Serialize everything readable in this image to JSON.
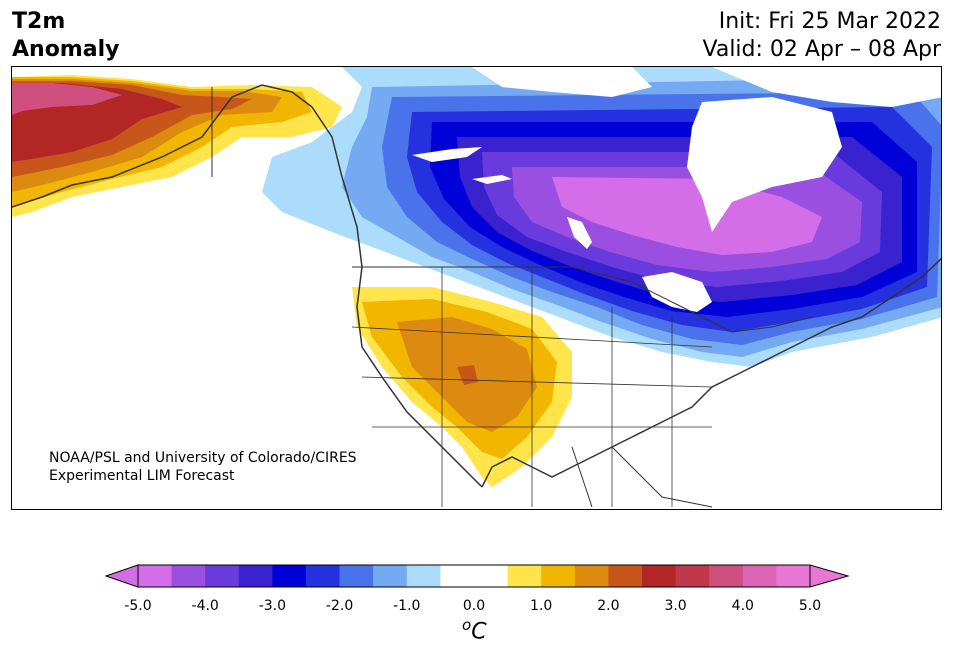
{
  "header": {
    "title_line1": "T2m",
    "title_line2": "Anomaly",
    "init": "Init: Fri 25 Mar 2022",
    "valid": "Valid: 02 Apr – 08 Apr"
  },
  "credit": {
    "line1": "NOAA/PSL and University of Colorado/CIRES",
    "line2": "Experimental LIM Forecast"
  },
  "colorbar": {
    "ticks": [
      "-5.0",
      "-4.0",
      "-3.0",
      "-2.0",
      "-1.0",
      "0.0",
      "1.0",
      "2.0",
      "3.0",
      "4.0",
      "5.0"
    ],
    "unit_base": "C",
    "unit_prefix": "o",
    "colors": [
      "#d46ee8",
      "#9b4fe0",
      "#6a3bdc",
      "#3a22cf",
      "#0000d8",
      "#2530de",
      "#4a72ea",
      "#75aaf2",
      "#acdcfb",
      "#ffffff",
      "#ffffff",
      "#ffe44a",
      "#f2b600",
      "#dd8a10",
      "#c8561a",
      "#b32626",
      "#c0384c",
      "#cf4f7e",
      "#db64b4",
      "#e877d4"
    ]
  },
  "map": {
    "region": "North America",
    "legend_note": "anomaly shading; cold over Canada/Great Lakes, warm over US Southwest and Alaska"
  }
}
